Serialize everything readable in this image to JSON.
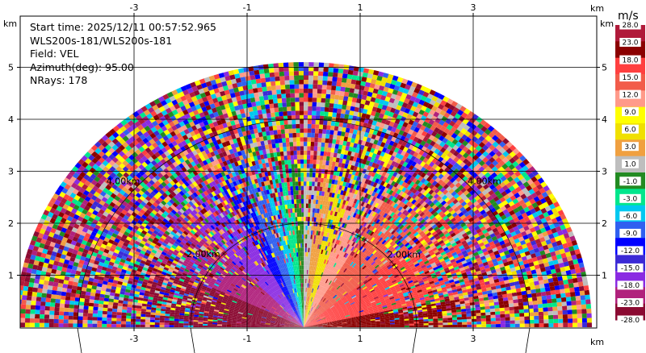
{
  "info": {
    "start_time": "Start time: 2025/12/11 00:57:52.965",
    "instrument": "WLS200s-181/WLS200s-181",
    "field": "Field: VEL",
    "azimuth": "Azimuth(deg): 95.00",
    "nrays": "NRays: 178"
  },
  "chart_data": {
    "type": "heatmap",
    "subtype": "rhi-sector",
    "field": "VEL",
    "units": "m/s",
    "x_ticks": [
      -3,
      -1,
      1,
      3
    ],
    "y_ticks": [
      1,
      2,
      3,
      4,
      5
    ],
    "axis_unit_label": "km",
    "xlim": [
      -5.4,
      5.2
    ],
    "ylim": [
      0,
      6.0
    ],
    "max_range_km": 5.1,
    "range_rings": [
      {
        "km": 2,
        "label": "2.00km"
      },
      {
        "km": 4,
        "label": "4.00km"
      }
    ],
    "colorbar": {
      "boundaries": [
        "-28.0",
        "-23.0",
        "-18.0",
        "-15.0",
        "-12.0",
        "-9.0",
        "-6.0",
        "-3.0",
        "-1.0",
        "1.0",
        "3.0",
        "6.0",
        "9.0",
        "12.0",
        "15.0",
        "18.0",
        "23.0",
        "28.0"
      ],
      "colors": [
        "#8b0a32",
        "#b0217c",
        "#8a2be2",
        "#3b2ad6",
        "#0000ff",
        "#3060f0",
        "#00c8f0",
        "#00e68c",
        "#228b22",
        "#bebebe",
        "#f0a040",
        "#f0e000",
        "#ffff00",
        "#ff9a8a",
        "#f25c4a",
        "#ff4040",
        "#8b0000",
        "#b01a3a"
      ]
    }
  }
}
